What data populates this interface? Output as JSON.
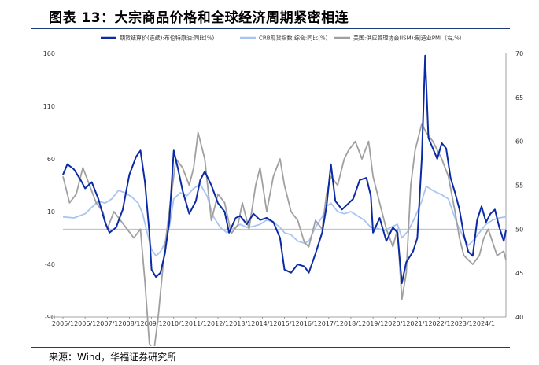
{
  "title": "图表 13：大宗商品价格和全球经济周期紧密相连",
  "source": "来源：Wind，华福证券研究所",
  "chart_data": {
    "type": "line",
    "title": "图表 13：大宗商品价格和全球经济周期紧密相连",
    "x_tick_labels": [
      "2005/1",
      "2006/1",
      "2007/1",
      "2008/1",
      "2009/1",
      "2010/1",
      "2011/1",
      "2012/1",
      "2013/1",
      "2014/1",
      "2015/1",
      "2016/1",
      "2017/1",
      "2018/1",
      "2019/1",
      "2020/1",
      "2021/1",
      "2022/1",
      "2023/1",
      "2024/1"
    ],
    "y_left": {
      "min": -90,
      "max": 160,
      "ticks": [
        160,
        110,
        60,
        10,
        -40,
        -90
      ]
    },
    "y_right": {
      "min": 40,
      "max": 70,
      "ticks": [
        70,
        65,
        60,
        55,
        50,
        45,
        40
      ]
    },
    "reference_line": {
      "axis": "right",
      "value": 50
    },
    "grid": false,
    "legend_position": "top",
    "series": [
      {
        "name": "期货结算价(连续):布伦特原油:同比(%)",
        "axis": "left",
        "color": "#0b2aa5",
        "values": [
          [
            2005.0,
            45
          ],
          [
            2005.2,
            55
          ],
          [
            2005.5,
            50
          ],
          [
            2005.8,
            40
          ],
          [
            2006.0,
            32
          ],
          [
            2006.3,
            38
          ],
          [
            2006.6,
            22
          ],
          [
            2006.9,
            0
          ],
          [
            2007.1,
            -10
          ],
          [
            2007.4,
            -5
          ],
          [
            2007.7,
            12
          ],
          [
            2008.0,
            45
          ],
          [
            2008.3,
            62
          ],
          [
            2008.5,
            68
          ],
          [
            2008.7,
            38
          ],
          [
            2008.9,
            -10
          ],
          [
            2009.0,
            -45
          ],
          [
            2009.2,
            -52
          ],
          [
            2009.4,
            -48
          ],
          [
            2009.6,
            -30
          ],
          [
            2009.8,
            0
          ],
          [
            2010.0,
            68
          ],
          [
            2010.2,
            50
          ],
          [
            2010.4,
            30
          ],
          [
            2010.7,
            8
          ],
          [
            2011.0,
            20
          ],
          [
            2011.2,
            40
          ],
          [
            2011.4,
            48
          ],
          [
            2011.7,
            35
          ],
          [
            2012.0,
            18
          ],
          [
            2012.3,
            10
          ],
          [
            2012.5,
            -10
          ],
          [
            2012.8,
            4
          ],
          [
            2013.0,
            6
          ],
          [
            2013.3,
            -2
          ],
          [
            2013.6,
            8
          ],
          [
            2013.9,
            2
          ],
          [
            2014.2,
            4
          ],
          [
            2014.5,
            0
          ],
          [
            2014.8,
            -15
          ],
          [
            2015.0,
            -45
          ],
          [
            2015.3,
            -48
          ],
          [
            2015.6,
            -40
          ],
          [
            2015.9,
            -42
          ],
          [
            2016.1,
            -48
          ],
          [
            2016.4,
            -30
          ],
          [
            2016.7,
            -10
          ],
          [
            2016.9,
            15
          ],
          [
            2017.1,
            55
          ],
          [
            2017.3,
            20
          ],
          [
            2017.6,
            12
          ],
          [
            2017.9,
            18
          ],
          [
            2018.1,
            22
          ],
          [
            2018.4,
            40
          ],
          [
            2018.7,
            42
          ],
          [
            2018.9,
            25
          ],
          [
            2019.0,
            -10
          ],
          [
            2019.3,
            4
          ],
          [
            2019.6,
            -18
          ],
          [
            2019.9,
            -5
          ],
          [
            2020.1,
            -10
          ],
          [
            2020.3,
            -58
          ],
          [
            2020.5,
            -38
          ],
          [
            2020.8,
            -28
          ],
          [
            2021.0,
            -15
          ],
          [
            2021.2,
            60
          ],
          [
            2021.35,
            158
          ],
          [
            2021.5,
            80
          ],
          [
            2021.7,
            70
          ],
          [
            2021.9,
            60
          ],
          [
            2022.1,
            75
          ],
          [
            2022.3,
            70
          ],
          [
            2022.5,
            42
          ],
          [
            2022.7,
            28
          ],
          [
            2022.9,
            12
          ],
          [
            2023.1,
            -12
          ],
          [
            2023.3,
            -28
          ],
          [
            2023.5,
            -32
          ],
          [
            2023.7,
            2
          ],
          [
            2023.9,
            15
          ],
          [
            2024.1,
            0
          ],
          [
            2024.3,
            8
          ],
          [
            2024.5,
            12
          ],
          [
            2024.7,
            -5
          ],
          [
            2024.9,
            -18
          ],
          [
            2025.0,
            -8
          ]
        ]
      },
      {
        "name": "CRB现货指数:综合:同比(%)",
        "axis": "left",
        "color": "#a9c4f0",
        "values": [
          [
            2005.0,
            5
          ],
          [
            2005.5,
            4
          ],
          [
            2006.0,
            8
          ],
          [
            2006.3,
            14
          ],
          [
            2006.6,
            20
          ],
          [
            2006.9,
            18
          ],
          [
            2007.2,
            22
          ],
          [
            2007.5,
            30
          ],
          [
            2007.8,
            28
          ],
          [
            2008.1,
            24
          ],
          [
            2008.4,
            18
          ],
          [
            2008.6,
            8
          ],
          [
            2008.8,
            -10
          ],
          [
            2009.0,
            -26
          ],
          [
            2009.2,
            -32
          ],
          [
            2009.4,
            -28
          ],
          [
            2009.6,
            -20
          ],
          [
            2009.8,
            -5
          ],
          [
            2010.0,
            22
          ],
          [
            2010.3,
            28
          ],
          [
            2010.6,
            25
          ],
          [
            2010.9,
            32
          ],
          [
            2011.2,
            36
          ],
          [
            2011.5,
            25
          ],
          [
            2011.8,
            5
          ],
          [
            2012.1,
            -5
          ],
          [
            2012.4,
            -10
          ],
          [
            2012.7,
            -6
          ],
          [
            2013.0,
            -2
          ],
          [
            2013.3,
            -5
          ],
          [
            2013.6,
            -4
          ],
          [
            2013.9,
            -2
          ],
          [
            2014.2,
            2
          ],
          [
            2014.5,
            0
          ],
          [
            2014.8,
            -5
          ],
          [
            2015.0,
            -10
          ],
          [
            2015.3,
            -12
          ],
          [
            2015.6,
            -18
          ],
          [
            2015.9,
            -20
          ],
          [
            2016.1,
            -18
          ],
          [
            2016.4,
            -5
          ],
          [
            2016.7,
            5
          ],
          [
            2016.9,
            15
          ],
          [
            2017.1,
            18
          ],
          [
            2017.4,
            10
          ],
          [
            2017.7,
            8
          ],
          [
            2018.0,
            10
          ],
          [
            2018.3,
            6
          ],
          [
            2018.6,
            2
          ],
          [
            2018.9,
            -5
          ],
          [
            2019.2,
            -6
          ],
          [
            2019.5,
            -8
          ],
          [
            2019.8,
            -5
          ],
          [
            2020.1,
            -2
          ],
          [
            2020.3,
            -15
          ],
          [
            2020.6,
            -8
          ],
          [
            2020.9,
            5
          ],
          [
            2021.2,
            20
          ],
          [
            2021.4,
            34
          ],
          [
            2021.7,
            30
          ],
          [
            2021.9,
            28
          ],
          [
            2022.1,
            26
          ],
          [
            2022.4,
            22
          ],
          [
            2022.6,
            10
          ],
          [
            2022.8,
            -2
          ],
          [
            2023.1,
            -15
          ],
          [
            2023.3,
            -22
          ],
          [
            2023.5,
            -18
          ],
          [
            2023.8,
            -10
          ],
          [
            2024.1,
            -2
          ],
          [
            2024.4,
            2
          ],
          [
            2024.7,
            4
          ],
          [
            2025.0,
            5
          ]
        ]
      },
      {
        "name": "美国:供应管理协会(ISM):制造业PMI（右,%）",
        "axis": "right",
        "color": "#a0a0a0",
        "values": [
          [
            2005.0,
            56
          ],
          [
            2005.3,
            53
          ],
          [
            2005.6,
            54
          ],
          [
            2005.9,
            57
          ],
          [
            2006.2,
            55
          ],
          [
            2006.5,
            53
          ],
          [
            2006.8,
            52
          ],
          [
            2007.0,
            50
          ],
          [
            2007.3,
            52
          ],
          [
            2007.6,
            51
          ],
          [
            2007.9,
            50
          ],
          [
            2008.2,
            49
          ],
          [
            2008.5,
            50
          ],
          [
            2008.7,
            44
          ],
          [
            2008.9,
            37
          ],
          [
            2009.1,
            36
          ],
          [
            2009.3,
            40
          ],
          [
            2009.6,
            48
          ],
          [
            2009.9,
            54
          ],
          [
            2010.1,
            58
          ],
          [
            2010.4,
            57
          ],
          [
            2010.7,
            55
          ],
          [
            2010.9,
            57
          ],
          [
            2011.1,
            61
          ],
          [
            2011.4,
            58
          ],
          [
            2011.7,
            51
          ],
          [
            2012.0,
            54
          ],
          [
            2012.3,
            53
          ],
          [
            2012.6,
            49.5
          ],
          [
            2012.9,
            50.5
          ],
          [
            2013.1,
            53
          ],
          [
            2013.4,
            50
          ],
          [
            2013.7,
            55
          ],
          [
            2013.9,
            57
          ],
          [
            2014.2,
            52
          ],
          [
            2014.5,
            56
          ],
          [
            2014.8,
            58
          ],
          [
            2015.0,
            55
          ],
          [
            2015.3,
            52
          ],
          [
            2015.6,
            51
          ],
          [
            2015.9,
            48.5
          ],
          [
            2016.1,
            48
          ],
          [
            2016.4,
            51
          ],
          [
            2016.7,
            50
          ],
          [
            2016.9,
            54
          ],
          [
            2017.1,
            56
          ],
          [
            2017.4,
            55
          ],
          [
            2017.7,
            58
          ],
          [
            2017.9,
            59
          ],
          [
            2018.2,
            60
          ],
          [
            2018.5,
            58
          ],
          [
            2018.8,
            60
          ],
          [
            2019.0,
            56
          ],
          [
            2019.3,
            53
          ],
          [
            2019.6,
            50
          ],
          [
            2019.9,
            48
          ],
          [
            2020.1,
            50
          ],
          [
            2020.3,
            42
          ],
          [
            2020.5,
            45
          ],
          [
            2020.7,
            55
          ],
          [
            2020.9,
            59
          ],
          [
            2021.2,
            62
          ],
          [
            2021.4,
            61
          ],
          [
            2021.7,
            60
          ],
          [
            2021.9,
            59
          ],
          [
            2022.1,
            58
          ],
          [
            2022.4,
            56
          ],
          [
            2022.7,
            52
          ],
          [
            2022.9,
            49
          ],
          [
            2023.1,
            47
          ],
          [
            2023.3,
            46.5
          ],
          [
            2023.5,
            46
          ],
          [
            2023.8,
            47
          ],
          [
            2024.0,
            49
          ],
          [
            2024.2,
            50
          ],
          [
            2024.4,
            48.5
          ],
          [
            2024.6,
            47
          ],
          [
            2024.9,
            47.5
          ],
          [
            2025.0,
            46.5
          ]
        ]
      }
    ]
  }
}
